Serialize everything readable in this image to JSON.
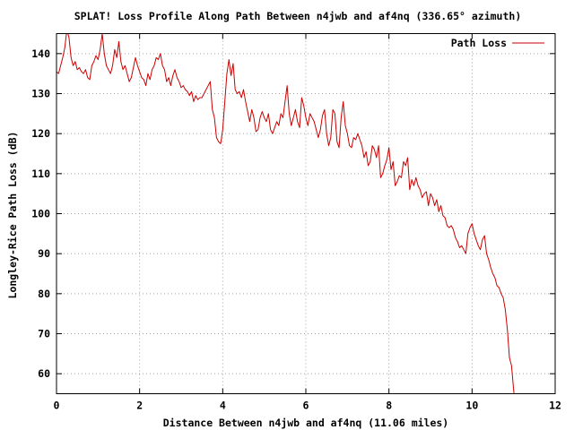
{
  "chart_data": {
    "type": "line",
    "title": "SPLAT! Loss Profile Along Path Between n4jwb and af4nq (336.65° azimuth)",
    "xlabel": "Distance Between n4jwb and af4nq (11.06 miles)",
    "ylabel": "Longley-Rice Path Loss (dB)",
    "xlim": [
      0,
      12
    ],
    "ylim": [
      55,
      145
    ],
    "xticks": [
      0,
      2,
      4,
      6,
      8,
      10,
      12
    ],
    "yticks": [
      60,
      70,
      80,
      90,
      100,
      110,
      120,
      130,
      140
    ],
    "grid": true,
    "legend_position": "top-right",
    "colors": {
      "series": "#cc0000"
    },
    "series": [
      {
        "name": "Path Loss",
        "x": [
          0.0,
          0.05,
          0.1,
          0.15,
          0.2,
          0.25,
          0.3,
          0.35,
          0.4,
          0.45,
          0.5,
          0.55,
          0.6,
          0.65,
          0.7,
          0.75,
          0.8,
          0.85,
          0.9,
          0.95,
          1.0,
          1.05,
          1.1,
          1.15,
          1.2,
          1.25,
          1.3,
          1.35,
          1.4,
          1.45,
          1.5,
          1.55,
          1.6,
          1.65,
          1.7,
          1.75,
          1.8,
          1.85,
          1.9,
          1.95,
          2.0,
          2.05,
          2.1,
          2.15,
          2.2,
          2.25,
          2.3,
          2.35,
          2.4,
          2.45,
          2.5,
          2.55,
          2.6,
          2.65,
          2.7,
          2.75,
          2.8,
          2.85,
          2.9,
          2.95,
          3.0,
          3.05,
          3.1,
          3.15,
          3.2,
          3.25,
          3.3,
          3.35,
          3.4,
          3.45,
          3.5,
          3.55,
          3.6,
          3.65,
          3.7,
          3.75,
          3.8,
          3.85,
          3.9,
          3.95,
          4.0,
          4.05,
          4.1,
          4.15,
          4.2,
          4.25,
          4.3,
          4.35,
          4.4,
          4.45,
          4.5,
          4.55,
          4.6,
          4.65,
          4.7,
          4.75,
          4.8,
          4.85,
          4.9,
          4.95,
          5.0,
          5.05,
          5.1,
          5.15,
          5.2,
          5.25,
          5.3,
          5.35,
          5.4,
          5.45,
          5.5,
          5.55,
          5.6,
          5.65,
          5.7,
          5.75,
          5.8,
          5.85,
          5.9,
          5.95,
          6.0,
          6.05,
          6.1,
          6.15,
          6.2,
          6.25,
          6.3,
          6.35,
          6.4,
          6.45,
          6.5,
          6.55,
          6.6,
          6.65,
          6.7,
          6.75,
          6.8,
          6.85,
          6.9,
          6.95,
          7.0,
          7.05,
          7.1,
          7.15,
          7.2,
          7.25,
          7.3,
          7.35,
          7.4,
          7.45,
          7.5,
          7.55,
          7.6,
          7.65,
          7.7,
          7.75,
          7.8,
          7.85,
          7.9,
          7.95,
          8.0,
          8.05,
          8.1,
          8.15,
          8.2,
          8.25,
          8.3,
          8.35,
          8.4,
          8.45,
          8.5,
          8.55,
          8.6,
          8.65,
          8.7,
          8.75,
          8.8,
          8.85,
          8.9,
          8.95,
          9.0,
          9.05,
          9.1,
          9.15,
          9.2,
          9.25,
          9.3,
          9.35,
          9.4,
          9.45,
          9.5,
          9.55,
          9.6,
          9.65,
          9.7,
          9.75,
          9.8,
          9.85,
          9.9,
          9.95,
          10.0,
          10.05,
          10.1,
          10.15,
          10.2,
          10.25,
          10.3,
          10.35,
          10.4,
          10.45,
          10.5,
          10.55,
          10.6,
          10.65,
          10.7,
          10.75,
          10.8,
          10.85,
          10.9,
          10.95,
          11.0,
          11.02
        ],
        "values": [
          135.5,
          135.0,
          137.0,
          139.0,
          141.5,
          146.0,
          144.0,
          139.0,
          137.0,
          138.0,
          136.0,
          136.5,
          135.5,
          135.0,
          136.0,
          134.0,
          133.5,
          137.0,
          138.0,
          139.5,
          138.5,
          141.0,
          145.0,
          140.0,
          137.0,
          136.0,
          135.0,
          137.0,
          141.0,
          139.0,
          143.0,
          138.0,
          136.0,
          137.0,
          135.0,
          133.0,
          134.0,
          136.5,
          139.0,
          137.0,
          135.5,
          134.0,
          133.5,
          132.0,
          135.0,
          133.5,
          136.0,
          137.0,
          139.0,
          138.5,
          140.0,
          137.0,
          136.0,
          133.0,
          134.0,
          132.0,
          134.5,
          136.0,
          134.0,
          133.0,
          131.5,
          132.0,
          131.0,
          130.5,
          129.5,
          130.5,
          128.0,
          129.5,
          128.5,
          129.0,
          129.0,
          130.0,
          131.0,
          132.0,
          133.0,
          126.0,
          124.0,
          119.0,
          118.0,
          117.5,
          121.0,
          128.0,
          135.0,
          138.5,
          134.5,
          137.5,
          131.0,
          130.0,
          130.5,
          129.0,
          131.0,
          128.0,
          125.5,
          123.0,
          126.0,
          124.0,
          120.5,
          121.0,
          124.0,
          125.5,
          124.0,
          123.0,
          125.0,
          121.0,
          120.0,
          121.5,
          123.0,
          122.0,
          125.0,
          124.0,
          128.0,
          132.0,
          125.0,
          122.0,
          124.0,
          126.0,
          123.0,
          121.5,
          129.0,
          127.0,
          124.0,
          122.0,
          125.0,
          124.0,
          123.0,
          121.0,
          119.0,
          121.0,
          124.5,
          126.0,
          120.0,
          117.0,
          119.0,
          126.0,
          125.0,
          118.0,
          116.5,
          124.0,
          128.0,
          122.0,
          120.0,
          117.0,
          116.5,
          119.0,
          118.5,
          120.0,
          118.5,
          117.0,
          114.0,
          115.5,
          112.0,
          113.0,
          117.0,
          116.0,
          114.0,
          117.0,
          109.0,
          110.0,
          112.0,
          113.5,
          116.5,
          111.0,
          113.0,
          107.0,
          108.0,
          109.5,
          109.0,
          113.0,
          112.0,
          114.0,
          106.0,
          108.5,
          107.0,
          109.0,
          107.0,
          106.0,
          104.0,
          105.0,
          105.5,
          102.0,
          105.0,
          104.0,
          102.0,
          103.5,
          100.5,
          102.0,
          99.5,
          99.0,
          97.0,
          96.5,
          97.0,
          96.0,
          94.0,
          93.0,
          91.5,
          92.0,
          91.0,
          90.0,
          95.0,
          96.5,
          97.5,
          95.0,
          93.5,
          92.0,
          91.0,
          93.5,
          94.5,
          90.0,
          88.5,
          86.5,
          85.0,
          84.0,
          82.0,
          81.5,
          80.0,
          79.0,
          76.0,
          71.0,
          64.0,
          62.0,
          56.0,
          54.0
        ]
      }
    ]
  }
}
